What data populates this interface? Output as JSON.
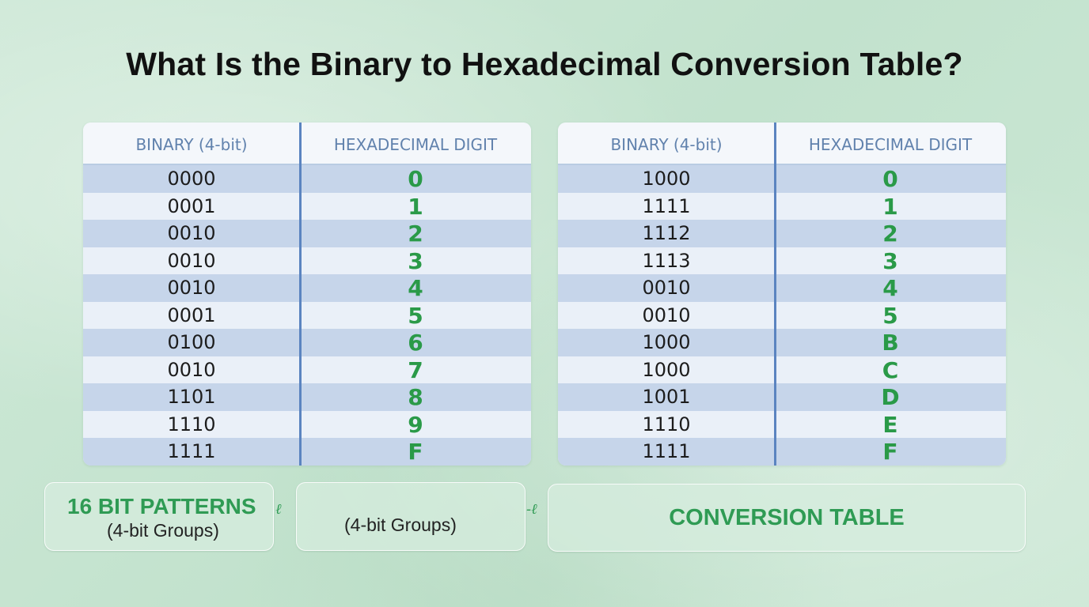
{
  "title": "What Is the Binary to Hexadecimal Conversion Table?",
  "tables": [
    {
      "headers": {
        "binary": "BINARY (4-bit)",
        "hex": "HEXADECIMAL DIGIT"
      },
      "rows": [
        {
          "binary": "0000",
          "hex": "0"
        },
        {
          "binary": "0001",
          "hex": "1"
        },
        {
          "binary": "0010",
          "hex": "2"
        },
        {
          "binary": "0010",
          "hex": "3"
        },
        {
          "binary": "0010",
          "hex": "4"
        },
        {
          "binary": "0001",
          "hex": "5"
        },
        {
          "binary": "0100",
          "hex": "6"
        },
        {
          "binary": "0010",
          "hex": "7"
        },
        {
          "binary": "1101",
          "hex": "8"
        },
        {
          "binary": "1110",
          "hex": "9"
        },
        {
          "binary": "1111",
          "hex": "F"
        }
      ]
    },
    {
      "headers": {
        "binary": "BINARY (4-bit)",
        "hex": "HEXADECIMAL DIGIT"
      },
      "rows": [
        {
          "binary": "1000",
          "hex": "0"
        },
        {
          "binary": "1111",
          "hex": "1"
        },
        {
          "binary": "1112",
          "hex": "2"
        },
        {
          "binary": "1113",
          "hex": "3"
        },
        {
          "binary": "0010",
          "hex": "4"
        },
        {
          "binary": "0010",
          "hex": "5"
        },
        {
          "binary": "1000",
          "hex": "B"
        },
        {
          "binary": "1000",
          "hex": "C"
        },
        {
          "binary": "1001",
          "hex": "D"
        },
        {
          "binary": "1110",
          "hex": "E"
        },
        {
          "binary": "1111",
          "hex": "F"
        }
      ]
    }
  ],
  "boxes": {
    "patterns": {
      "title": "16 BIT PATTERNS",
      "subtitle": "(4-bit Groups)"
    },
    "groups": {
      "subtitle": "(4-bit Groups)"
    },
    "table": {
      "title": "CONVERSION TABLE"
    }
  },
  "connectors": [
    "ℓ",
    "-ℓ"
  ],
  "colors": {
    "background": "#c9e6d3",
    "header_text": "#6182ad",
    "divider": "#5b84c0",
    "row_band": "#c6d5ea",
    "hex_digit": "#2a9a48",
    "box_title": "#2f9b54"
  }
}
